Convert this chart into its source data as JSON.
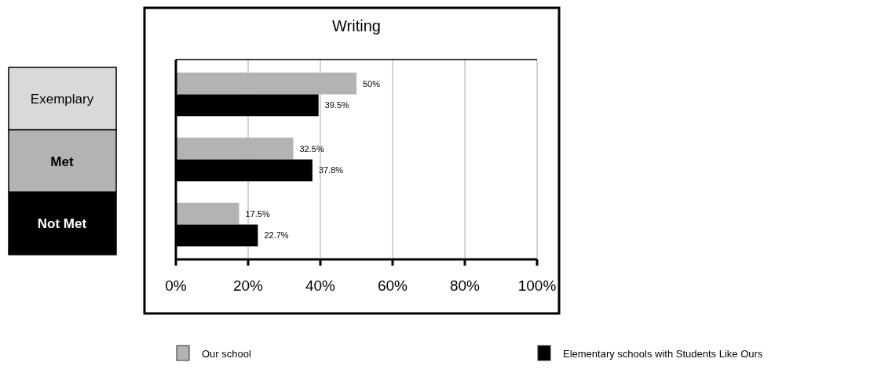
{
  "chart_data": {
    "type": "bar",
    "orientation": "horizontal",
    "title": "Writing",
    "categories": [
      "Exemplary",
      "Met",
      "Not Met"
    ],
    "series": [
      {
        "name": "Our school",
        "color": "#b3b3b3",
        "values": [
          50,
          32.5,
          17.5
        ],
        "value_labels": [
          "50%",
          "32.5%",
          "17.5%"
        ]
      },
      {
        "name": "Elementary schools with Students Like Ours",
        "color": "#000000",
        "values": [
          39.5,
          37.8,
          22.7
        ],
        "value_labels": [
          "39.5%",
          "37.8%",
          "22.7%"
        ]
      }
    ],
    "xlim": [
      0,
      100
    ],
    "xticks": [
      {
        "value": 0,
        "label": "0%"
      },
      {
        "value": 20,
        "label": "20%"
      },
      {
        "value": 40,
        "label": "40%"
      },
      {
        "value": 60,
        "label": "60%"
      },
      {
        "value": 80,
        "label": "80%"
      },
      {
        "value": 100,
        "label": "100%"
      }
    ],
    "grid": "x",
    "legend": "bottom"
  }
}
